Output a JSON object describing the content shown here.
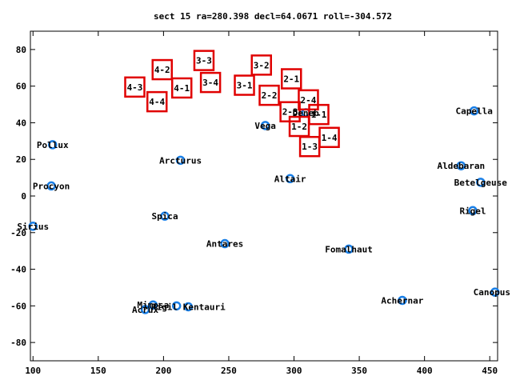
{
  "chart_data": {
    "type": "scatter",
    "title": "sect 15 ra=280.398 decl=64.0671 roll=-304.572",
    "xlabel": "",
    "ylabel": "",
    "xlim": [
      98,
      456
    ],
    "ylim": [
      -90,
      90
    ],
    "x_ticks": [
      100,
      150,
      200,
      250,
      300,
      350,
      400,
      450
    ],
    "y_ticks": [
      -80,
      -60,
      -40,
      -20,
      0,
      20,
      40,
      60,
      80
    ],
    "stars": [
      {
        "name": "Capella",
        "x": 438,
        "y": 46.5
      },
      {
        "name": "Pollux",
        "x": 115,
        "y": 28
      },
      {
        "name": "Arcturus",
        "x": 213,
        "y": 19.5
      },
      {
        "name": "Vega",
        "x": 278,
        "y": 38.5
      },
      {
        "name": "Deneb",
        "x": 309,
        "y": 45.5
      },
      {
        "name": "Aldebaran",
        "x": 428,
        "y": 16.5
      },
      {
        "name": "Altair",
        "x": 297,
        "y": 9.5
      },
      {
        "name": "Betelgeuse",
        "x": 443,
        "y": 7.5
      },
      {
        "name": "Procyon",
        "x": 114,
        "y": 5.5
      },
      {
        "name": "Rigel",
        "x": 437,
        "y": -8
      },
      {
        "name": "Spica",
        "x": 201,
        "y": -11
      },
      {
        "name": "Sirius",
        "x": 100,
        "y": -16.5
      },
      {
        "name": "Antares",
        "x": 247,
        "y": -26
      },
      {
        "name": "Fomalhaut",
        "x": 342,
        "y": -29
      },
      {
        "name": "Achernar",
        "x": 383,
        "y": -57
      },
      {
        "name": "Canopus",
        "x": 454,
        "y": -52.5
      },
      {
        "name": "Mimosa",
        "x": 192,
        "y": -59.5
      },
      {
        "name": "Hadar",
        "x": 210,
        "y": -60
      },
      {
        "name": "Acrux",
        "x": 186,
        "y": -62
      },
      {
        "name": "Rigil Kentaurus",
        "x": 219,
        "y": -60.5
      }
    ],
    "star_labels": [
      {
        "text": "Capella",
        "x": 438,
        "y": 46.5
      },
      {
        "text": "Pollux",
        "x": 115,
        "y": 28
      },
      {
        "text": "Arcturus",
        "x": 213,
        "y": 19.5
      },
      {
        "text": "Vega",
        "x": 278,
        "y": 38.5
      },
      {
        "text": "Deneb",
        "x": 309,
        "y": 45.5
      },
      {
        "text": "Aldebaran",
        "x": 428,
        "y": 16.5
      },
      {
        "text": "Altair",
        "x": 297,
        "y": 9.5
      },
      {
        "text": "Betelgeuse",
        "x": 443,
        "y": 7.5
      },
      {
        "text": "Procyon",
        "x": 114,
        "y": 5.5
      },
      {
        "text": "Rigel",
        "x": 437,
        "y": -8
      },
      {
        "text": "Spica",
        "x": 201,
        "y": -11
      },
      {
        "text": "Sirius",
        "x": 100,
        "y": -16.5
      },
      {
        "text": "Antares",
        "x": 247,
        "y": -26
      },
      {
        "text": "Fomalhaut",
        "x": 342,
        "y": -29
      },
      {
        "text": "Achernar",
        "x": 383,
        "y": -57
      },
      {
        "text": "Canopus",
        "x": 454,
        "y": -52.5
      },
      {
        "text": "Mimosa",
        "x": 192,
        "y": -59.5
      },
      {
        "text": "Acrux",
        "x": 186,
        "y": -62
      },
      {
        "text": "Rigil Kentauri",
        "x": 219,
        "y": -60.5
      }
    ],
    "sectors": [
      {
        "label": "4-2",
        "x": 199,
        "y": 69
      },
      {
        "label": "3-3",
        "x": 231,
        "y": 74
      },
      {
        "label": "3-2",
        "x": 275,
        "y": 71.5
      },
      {
        "label": "2-1",
        "x": 298,
        "y": 64
      },
      {
        "label": "4-3",
        "x": 178,
        "y": 59.5
      },
      {
        "label": "4-1",
        "x": 214,
        "y": 59
      },
      {
        "label": "3-4",
        "x": 236,
        "y": 62
      },
      {
        "label": "3-1",
        "x": 262,
        "y": 60.5
      },
      {
        "label": "2-2",
        "x": 281,
        "y": 55
      },
      {
        "label": "2-4",
        "x": 311,
        "y": 52.5
      },
      {
        "label": "4-4",
        "x": 195,
        "y": 51.5
      },
      {
        "label": "2-3",
        "x": 297,
        "y": 46
      },
      {
        "label": "1-1",
        "x": 319,
        "y": 44.5
      },
      {
        "label": "1-2",
        "x": 304,
        "y": 38
      },
      {
        "label": "1-4",
        "x": 327,
        "y": 32
      },
      {
        "label": "1-3",
        "x": 312,
        "y": 27
      }
    ]
  }
}
